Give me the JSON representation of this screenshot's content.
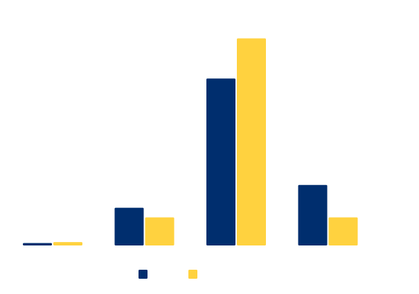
{
  "chart_data": {
    "type": "bar",
    "categories": [
      "",
      "",
      "",
      ""
    ],
    "series": [
      {
        "color": "#002e6e",
        "values": [
          0.5,
          7.8,
          34.5,
          12.5
        ]
      },
      {
        "color": "#ffd23f",
        "values": [
          0.7,
          5.8,
          42.8,
          5.8
        ]
      }
    ],
    "ylim": [
      0,
      45
    ],
    "grid": false,
    "legend_position": "bottom"
  }
}
